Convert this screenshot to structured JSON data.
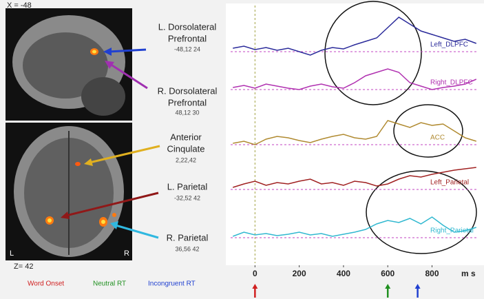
{
  "chart_data": {
    "type": "line",
    "x_label": "m s",
    "x": [
      -100,
      -50,
      0,
      50,
      100,
      150,
      200,
      250,
      300,
      350,
      400,
      450,
      500,
      550,
      600,
      650,
      700,
      750,
      800,
      850,
      900,
      950,
      1000
    ],
    "xlim": [
      -110,
      1010
    ],
    "xticks": [
      0,
      200,
      400,
      600,
      800
    ],
    "series": [
      {
        "name": "Left_DLPFC",
        "color": "#2a2a9a",
        "values": [
          5,
          8,
          3,
          6,
          2,
          5,
          0,
          -5,
          2,
          6,
          4,
          10,
          15,
          20,
          35,
          50,
          40,
          30,
          25,
          20,
          15,
          18,
          12
        ]
      },
      {
        "name": "Right_DLPFC",
        "color": "#b030b0",
        "values": [
          3,
          6,
          2,
          8,
          5,
          2,
          0,
          5,
          8,
          4,
          2,
          10,
          20,
          25,
          30,
          25,
          10,
          5,
          0,
          3,
          5,
          8,
          15
        ]
      },
      {
        "name": "ACC",
        "color": "#b08a30",
        "values": [
          2,
          5,
          0,
          8,
          12,
          10,
          6,
          3,
          8,
          12,
          15,
          10,
          8,
          12,
          35,
          30,
          25,
          32,
          28,
          30,
          20,
          10,
          5
        ]
      },
      {
        "name": "Left_Parietal",
        "color": "#a02020",
        "values": [
          3,
          8,
          12,
          6,
          10,
          8,
          12,
          15,
          8,
          10,
          6,
          12,
          10,
          5,
          8,
          15,
          20,
          18,
          22,
          25,
          28,
          30,
          32
        ]
      },
      {
        "name": "Right_Parietal",
        "color": "#30b8d0",
        "values": [
          2,
          8,
          4,
          6,
          3,
          5,
          8,
          4,
          6,
          2,
          5,
          8,
          12,
          20,
          25,
          22,
          28,
          20,
          30,
          18,
          8,
          10,
          15
        ]
      }
    ],
    "events": [
      {
        "label": "Word Onset",
        "x": 0,
        "color": "#d02020"
      },
      {
        "label": "Neutral RT",
        "x": 600,
        "color": "#209020"
      },
      {
        "label": "Incongruent RT",
        "x": 735,
        "color": "#2040d0"
      }
    ]
  },
  "brain_panel": {
    "sagittal_label": "X = -48",
    "axial_label": "Z= 42",
    "left_marker": "L",
    "right_marker": "R",
    "regions": [
      {
        "lines": [
          "L. Dorsolateral",
          "Prefrontal"
        ],
        "coords": "-48,12 24"
      },
      {
        "lines": [
          "R. Dorsolateral",
          "Prefrontal"
        ],
        "coords": "48,12 30"
      },
      {
        "lines": [
          "Anterior",
          "Cinqulate"
        ],
        "coords": "2,22,42"
      },
      {
        "lines": [
          "L. Parietal"
        ],
        "coords": "-32,52 42"
      },
      {
        "lines": [
          "R. Parietal"
        ],
        "coords": "36,56 42"
      }
    ]
  }
}
